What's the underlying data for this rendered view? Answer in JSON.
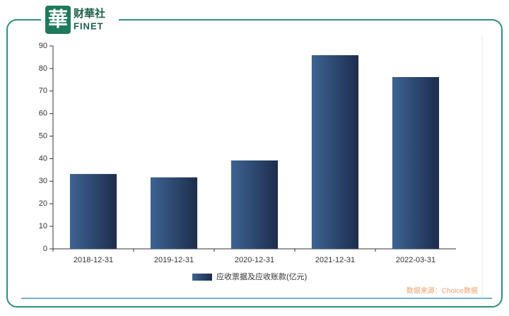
{
  "header": {
    "logo_char": "華",
    "brand": "财華社",
    "brand_en": "FINET"
  },
  "chart_data": {
    "type": "bar",
    "categories": [
      "2018-12-31",
      "2019-12-31",
      "2020-12-31",
      "2021-12-31",
      "2022-03-31"
    ],
    "series": [
      {
        "name": "应收票据及应收账款(亿元)",
        "color": "#2b4a73",
        "values": [
          33.2,
          31.7,
          39.2,
          85.9,
          76.2
        ]
      }
    ],
    "ylim": [
      0,
      90
    ],
    "yticks": [
      0,
      10,
      20,
      30,
      40,
      50,
      60,
      70,
      80,
      90
    ],
    "grid": false,
    "legend": "bottom"
  },
  "source": "数据来源：Choice数据"
}
